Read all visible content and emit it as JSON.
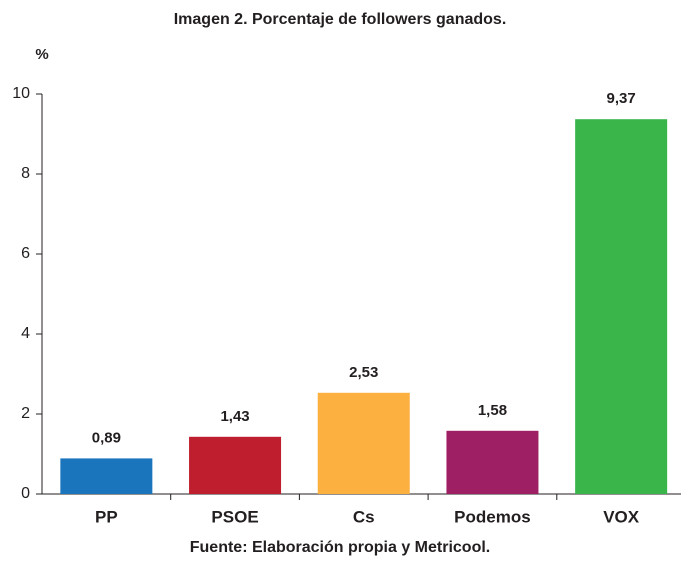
{
  "chart_data": {
    "type": "bar",
    "title": "Imagen 2. Porcentaje de followers ganados.",
    "y_label": "%",
    "source": "Fuente: Elaboración propia y Metricool.",
    "categories": [
      "PP",
      "PSOE",
      "Cs",
      "Podemos",
      "VOX"
    ],
    "values": [
      0.89,
      1.43,
      2.53,
      1.58,
      9.37
    ],
    "value_labels": [
      "0,89",
      "1,43",
      "2,53",
      "1,58",
      "9,37"
    ],
    "colors": [
      "#1a75bc",
      "#be1e2d",
      "#fbb040",
      "#9e1f63",
      "#39b54a"
    ],
    "ylim": [
      0,
      10
    ],
    "yticks": [
      0,
      2,
      4,
      6,
      8,
      10
    ]
  }
}
